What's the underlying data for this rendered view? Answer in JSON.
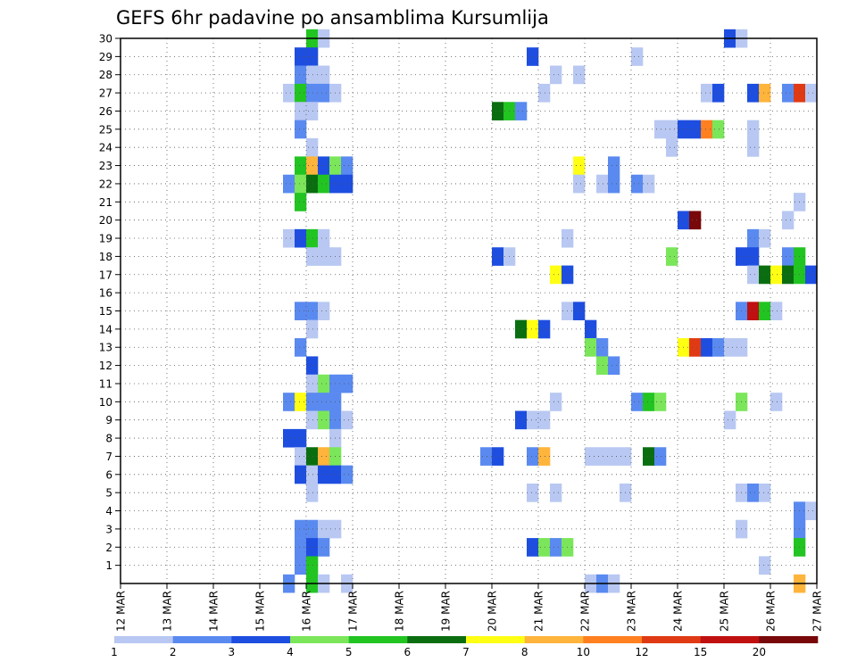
{
  "chart_data": {
    "type": "heatmap",
    "title": "GEFS 6hr padavine po ansamblima Kursumlija",
    "xlabel": "",
    "ylabel": "",
    "x_tick_labels": [
      "12 MAR",
      "13 MAR",
      "14 MAR",
      "15 MAR",
      "16 MAR",
      "17 MAR",
      "18 MAR",
      "19 MAR",
      "20 MAR",
      "21 MAR",
      "22 MAR",
      "23 MAR",
      "24 MAR",
      "25 MAR",
      "26 MAR",
      "27 MAR"
    ],
    "y_tick_labels": [
      "1",
      "2",
      "3",
      "4",
      "5",
      "6",
      "7",
      "8",
      "9",
      "10",
      "11",
      "12",
      "13",
      "14",
      "15",
      "16",
      "17",
      "18",
      "19",
      "20",
      "21",
      "22",
      "23",
      "24",
      "25",
      "26",
      "27",
      "28",
      "29",
      "30"
    ],
    "x_steps_per_day": 4,
    "x_start_day": 12,
    "x_end_day": 27,
    "ylim": [
      0,
      30
    ],
    "grid": true,
    "colorbar": {
      "position": "bottom",
      "labels": [
        "1",
        "2",
        "3",
        "4",
        "5",
        "6",
        "7",
        "8",
        "10",
        "12",
        "15",
        "20"
      ],
      "colors": [
        "#b8c8f2",
        "#5a8af0",
        "#1e4ee0",
        "#7be65a",
        "#22c422",
        "#0a6e10",
        "#ffff14",
        "#ffb43c",
        "#ff8020",
        "#e03a14",
        "#c01010",
        "#78080a"
      ]
    },
    "cells": [
      {
        "member": 30,
        "day": 16.0,
        "value": 5
      },
      {
        "member": 30,
        "day": 16.25,
        "value": 1
      },
      {
        "member": 30,
        "day": 25.0,
        "value": 3
      },
      {
        "member": 30,
        "day": 25.25,
        "value": 1
      },
      {
        "member": 29,
        "day": 15.75,
        "value": 3
      },
      {
        "member": 29,
        "day": 16.0,
        "value": 3
      },
      {
        "member": 29,
        "day": 20.75,
        "value": 3
      },
      {
        "member": 29,
        "day": 23.0,
        "value": 1
      },
      {
        "member": 28,
        "day": 15.75,
        "value": 2
      },
      {
        "member": 28,
        "day": 16.0,
        "value": 1
      },
      {
        "member": 28,
        "day": 16.25,
        "value": 1
      },
      {
        "member": 28,
        "day": 21.25,
        "value": 1
      },
      {
        "member": 28,
        "day": 21.75,
        "value": 1
      },
      {
        "member": 27,
        "day": 15.5,
        "value": 1
      },
      {
        "member": 27,
        "day": 15.75,
        "value": 5
      },
      {
        "member": 27,
        "day": 16.0,
        "value": 2
      },
      {
        "member": 27,
        "day": 16.25,
        "value": 2
      },
      {
        "member": 27,
        "day": 16.5,
        "value": 1
      },
      {
        "member": 27,
        "day": 21.0,
        "value": 1
      },
      {
        "member": 27,
        "day": 24.5,
        "value": 1
      },
      {
        "member": 27,
        "day": 24.75,
        "value": 3
      },
      {
        "member": 27,
        "day": 25.5,
        "value": 3
      },
      {
        "member": 27,
        "day": 25.75,
        "value": 8
      },
      {
        "member": 27,
        "day": 26.25,
        "value": 2
      },
      {
        "member": 27,
        "day": 26.5,
        "value": 12
      },
      {
        "member": 27,
        "day": 26.75,
        "value": 1
      },
      {
        "member": 26,
        "day": 15.75,
        "value": 1
      },
      {
        "member": 26,
        "day": 16.0,
        "value": 1
      },
      {
        "member": 26,
        "day": 20.0,
        "value": 6
      },
      {
        "member": 26,
        "day": 20.25,
        "value": 5
      },
      {
        "member": 26,
        "day": 20.5,
        "value": 2
      },
      {
        "member": 25,
        "day": 15.75,
        "value": 2
      },
      {
        "member": 25,
        "day": 23.5,
        "value": 1
      },
      {
        "member": 25,
        "day": 23.75,
        "value": 1
      },
      {
        "member": 25,
        "day": 24.0,
        "value": 3
      },
      {
        "member": 25,
        "day": 24.25,
        "value": 3
      },
      {
        "member": 25,
        "day": 24.5,
        "value": 10
      },
      {
        "member": 25,
        "day": 24.75,
        "value": 4
      },
      {
        "member": 25,
        "day": 25.5,
        "value": 1
      },
      {
        "member": 24,
        "day": 16.0,
        "value": 1
      },
      {
        "member": 24,
        "day": 23.75,
        "value": 1
      },
      {
        "member": 24,
        "day": 25.5,
        "value": 1
      },
      {
        "member": 23,
        "day": 15.75,
        "value": 5
      },
      {
        "member": 23,
        "day": 16.0,
        "value": 8
      },
      {
        "member": 23,
        "day": 16.25,
        "value": 3
      },
      {
        "member": 23,
        "day": 16.5,
        "value": 4
      },
      {
        "member": 23,
        "day": 16.75,
        "value": 2
      },
      {
        "member": 23,
        "day": 21.75,
        "value": 7
      },
      {
        "member": 23,
        "day": 22.5,
        "value": 2
      },
      {
        "member": 22,
        "day": 15.5,
        "value": 2
      },
      {
        "member": 22,
        "day": 15.75,
        "value": 4
      },
      {
        "member": 22,
        "day": 16.0,
        "value": 6
      },
      {
        "member": 22,
        "day": 16.25,
        "value": 5
      },
      {
        "member": 22,
        "day": 16.5,
        "value": 3
      },
      {
        "member": 22,
        "day": 16.75,
        "value": 3
      },
      {
        "member": 22,
        "day": 21.75,
        "value": 1
      },
      {
        "member": 22,
        "day": 22.25,
        "value": 1
      },
      {
        "member": 22,
        "day": 22.5,
        "value": 2
      },
      {
        "member": 22,
        "day": 23.0,
        "value": 2
      },
      {
        "member": 22,
        "day": 23.25,
        "value": 1
      },
      {
        "member": 21,
        "day": 15.75,
        "value": 5
      },
      {
        "member": 21,
        "day": 26.5,
        "value": 1
      },
      {
        "member": 20,
        "day": 24.0,
        "value": 3
      },
      {
        "member": 20,
        "day": 24.25,
        "value": 20
      },
      {
        "member": 20,
        "day": 26.25,
        "value": 1
      },
      {
        "member": 19,
        "day": 15.5,
        "value": 1
      },
      {
        "member": 19,
        "day": 15.75,
        "value": 3
      },
      {
        "member": 19,
        "day": 16.0,
        "value": 5
      },
      {
        "member": 19,
        "day": 16.25,
        "value": 1
      },
      {
        "member": 19,
        "day": 21.5,
        "value": 1
      },
      {
        "member": 19,
        "day": 25.5,
        "value": 2
      },
      {
        "member": 19,
        "day": 25.75,
        "value": 1
      },
      {
        "member": 18,
        "day": 16.0,
        "value": 1
      },
      {
        "member": 18,
        "day": 16.25,
        "value": 1
      },
      {
        "member": 18,
        "day": 16.5,
        "value": 1
      },
      {
        "member": 18,
        "day": 20.0,
        "value": 3
      },
      {
        "member": 18,
        "day": 20.25,
        "value": 1
      },
      {
        "member": 18,
        "day": 23.75,
        "value": 4
      },
      {
        "member": 18,
        "day": 25.25,
        "value": 3
      },
      {
        "member": 18,
        "day": 25.5,
        "value": 3
      },
      {
        "member": 18,
        "day": 26.25,
        "value": 2
      },
      {
        "member": 18,
        "day": 26.5,
        "value": 5
      },
      {
        "member": 17,
        "day": 21.25,
        "value": 7
      },
      {
        "member": 17,
        "day": 21.5,
        "value": 3
      },
      {
        "member": 17,
        "day": 25.5,
        "value": 1
      },
      {
        "member": 17,
        "day": 25.75,
        "value": 6
      },
      {
        "member": 17,
        "day": 26.0,
        "value": 7
      },
      {
        "member": 17,
        "day": 26.25,
        "value": 6
      },
      {
        "member": 17,
        "day": 26.5,
        "value": 5
      },
      {
        "member": 17,
        "day": 26.75,
        "value": 3
      },
      {
        "member": 15,
        "day": 15.75,
        "value": 2
      },
      {
        "member": 15,
        "day": 16.0,
        "value": 2
      },
      {
        "member": 15,
        "day": 16.25,
        "value": 1
      },
      {
        "member": 15,
        "day": 21.5,
        "value": 1
      },
      {
        "member": 15,
        "day": 21.75,
        "value": 3
      },
      {
        "member": 15,
        "day": 25.25,
        "value": 2
      },
      {
        "member": 15,
        "day": 25.5,
        "value": 15
      },
      {
        "member": 15,
        "day": 25.75,
        "value": 5
      },
      {
        "member": 15,
        "day": 26.0,
        "value": 1
      },
      {
        "member": 14,
        "day": 16.0,
        "value": 1
      },
      {
        "member": 14,
        "day": 20.5,
        "value": 6
      },
      {
        "member": 14,
        "day": 20.75,
        "value": 7
      },
      {
        "member": 14,
        "day": 21.0,
        "value": 3
      },
      {
        "member": 14,
        "day": 22.0,
        "value": 3
      },
      {
        "member": 13,
        "day": 15.75,
        "value": 2
      },
      {
        "member": 13,
        "day": 22.0,
        "value": 4
      },
      {
        "member": 13,
        "day": 22.25,
        "value": 2
      },
      {
        "member": 13,
        "day": 24.0,
        "value": 7
      },
      {
        "member": 13,
        "day": 24.25,
        "value": 12
      },
      {
        "member": 13,
        "day": 24.5,
        "value": 3
      },
      {
        "member": 13,
        "day": 24.75,
        "value": 2
      },
      {
        "member": 13,
        "day": 25.0,
        "value": 1
      },
      {
        "member": 13,
        "day": 25.25,
        "value": 1
      },
      {
        "member": 12,
        "day": 16.0,
        "value": 3
      },
      {
        "member": 12,
        "day": 22.25,
        "value": 4
      },
      {
        "member": 12,
        "day": 22.5,
        "value": 2
      },
      {
        "member": 11,
        "day": 16.0,
        "value": 1
      },
      {
        "member": 11,
        "day": 16.25,
        "value": 4
      },
      {
        "member": 11,
        "day": 16.5,
        "value": 2
      },
      {
        "member": 11,
        "day": 16.75,
        "value": 2
      },
      {
        "member": 10,
        "day": 15.5,
        "value": 2
      },
      {
        "member": 10,
        "day": 15.75,
        "value": 7
      },
      {
        "member": 10,
        "day": 16.0,
        "value": 2
      },
      {
        "member": 10,
        "day": 16.25,
        "value": 2
      },
      {
        "member": 10,
        "day": 16.5,
        "value": 2
      },
      {
        "member": 10,
        "day": 21.25,
        "value": 1
      },
      {
        "member": 10,
        "day": 23.0,
        "value": 2
      },
      {
        "member": 10,
        "day": 23.25,
        "value": 5
      },
      {
        "member": 10,
        "day": 23.5,
        "value": 4
      },
      {
        "member": 10,
        "day": 25.25,
        "value": 4
      },
      {
        "member": 10,
        "day": 26.0,
        "value": 1
      },
      {
        "member": 9,
        "day": 16.0,
        "value": 1
      },
      {
        "member": 9,
        "day": 16.25,
        "value": 4
      },
      {
        "member": 9,
        "day": 16.5,
        "value": 2
      },
      {
        "member": 9,
        "day": 16.75,
        "value": 1
      },
      {
        "member": 9,
        "day": 20.5,
        "value": 3
      },
      {
        "member": 9,
        "day": 20.75,
        "value": 1
      },
      {
        "member": 9,
        "day": 21.0,
        "value": 1
      },
      {
        "member": 9,
        "day": 25.0,
        "value": 1
      },
      {
        "member": 8,
        "day": 15.5,
        "value": 3
      },
      {
        "member": 8,
        "day": 15.75,
        "value": 3
      },
      {
        "member": 8,
        "day": 16.5,
        "value": 1
      },
      {
        "member": 7,
        "day": 15.75,
        "value": 1
      },
      {
        "member": 7,
        "day": 16.0,
        "value": 6
      },
      {
        "member": 7,
        "day": 16.25,
        "value": 8
      },
      {
        "member": 7,
        "day": 16.5,
        "value": 4
      },
      {
        "member": 7,
        "day": 19.75,
        "value": 2
      },
      {
        "member": 7,
        "day": 20.0,
        "value": 3
      },
      {
        "member": 7,
        "day": 20.75,
        "value": 2
      },
      {
        "member": 7,
        "day": 21.0,
        "value": 8
      },
      {
        "member": 7,
        "day": 22.0,
        "value": 1
      },
      {
        "member": 7,
        "day": 22.25,
        "value": 1
      },
      {
        "member": 7,
        "day": 22.5,
        "value": 1
      },
      {
        "member": 7,
        "day": 22.75,
        "value": 1
      },
      {
        "member": 7,
        "day": 23.25,
        "value": 6
      },
      {
        "member": 7,
        "day": 23.5,
        "value": 2
      },
      {
        "member": 6,
        "day": 15.75,
        "value": 3
      },
      {
        "member": 6,
        "day": 16.0,
        "value": 1
      },
      {
        "member": 6,
        "day": 16.25,
        "value": 3
      },
      {
        "member": 6,
        "day": 16.5,
        "value": 3
      },
      {
        "member": 6,
        "day": 16.75,
        "value": 2
      },
      {
        "member": 5,
        "day": 16.0,
        "value": 1
      },
      {
        "member": 5,
        "day": 20.75,
        "value": 1
      },
      {
        "member": 5,
        "day": 21.25,
        "value": 1
      },
      {
        "member": 5,
        "day": 22.75,
        "value": 1
      },
      {
        "member": 5,
        "day": 25.25,
        "value": 1
      },
      {
        "member": 5,
        "day": 25.5,
        "value": 2
      },
      {
        "member": 5,
        "day": 25.75,
        "value": 1
      },
      {
        "member": 4,
        "day": 26.5,
        "value": 2
      },
      {
        "member": 4,
        "day": 26.75,
        "value": 1
      },
      {
        "member": 3,
        "day": 15.75,
        "value": 2
      },
      {
        "member": 3,
        "day": 16.0,
        "value": 2
      },
      {
        "member": 3,
        "day": 16.25,
        "value": 1
      },
      {
        "member": 3,
        "day": 16.5,
        "value": 1
      },
      {
        "member": 3,
        "day": 25.25,
        "value": 1
      },
      {
        "member": 3,
        "day": 26.5,
        "value": 2
      },
      {
        "member": 2,
        "day": 15.75,
        "value": 2
      },
      {
        "member": 2,
        "day": 16.0,
        "value": 3
      },
      {
        "member": 2,
        "day": 16.25,
        "value": 2
      },
      {
        "member": 2,
        "day": 20.75,
        "value": 3
      },
      {
        "member": 2,
        "day": 21.0,
        "value": 4
      },
      {
        "member": 2,
        "day": 21.25,
        "value": 2
      },
      {
        "member": 2,
        "day": 21.5,
        "value": 4
      },
      {
        "member": 2,
        "day": 26.5,
        "value": 5
      },
      {
        "member": 1,
        "day": 15.75,
        "value": 2
      },
      {
        "member": 1,
        "day": 16.0,
        "value": 5
      },
      {
        "member": 1,
        "day": 25.75,
        "value": 1
      },
      {
        "member": 0,
        "day": 15.5,
        "value": 2
      },
      {
        "member": 0,
        "day": 16.0,
        "value": 5
      },
      {
        "member": 0,
        "day": 16.25,
        "value": 1
      },
      {
        "member": 0,
        "day": 16.75,
        "value": 1
      },
      {
        "member": 0,
        "day": 22.0,
        "value": 1
      },
      {
        "member": 0,
        "day": 22.25,
        "value": 2
      },
      {
        "member": 0,
        "day": 22.5,
        "value": 1
      },
      {
        "member": 0,
        "day": 26.5,
        "value": 8
      }
    ]
  }
}
